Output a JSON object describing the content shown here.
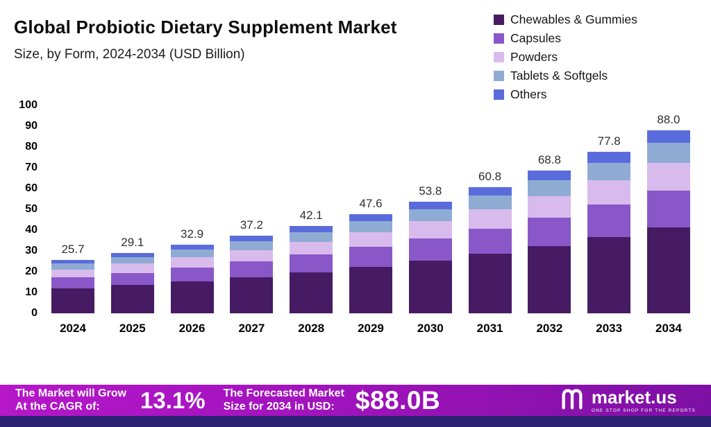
{
  "header": {
    "title": "Global Probiotic Dietary Supplement Market",
    "subtitle": "Size, by Form, 2024-2034 (USD Billion)"
  },
  "chart_data": {
    "type": "bar",
    "stacked": true,
    "title": "Global Probiotic Dietary Supplement Market",
    "subtitle": "Size, by Form, 2024-2034 (USD Billion)",
    "unit": "USD Billion",
    "grid": false,
    "legend_position": "top-right",
    "ylim": [
      0,
      100
    ],
    "yticks": [
      0,
      10,
      20,
      30,
      40,
      50,
      60,
      70,
      80,
      90,
      100
    ],
    "categories": [
      "2024",
      "2025",
      "2026",
      "2027",
      "2028",
      "2029",
      "2030",
      "2031",
      "2032",
      "2033",
      "2034"
    ],
    "series": [
      {
        "name": "Chewables & Gummies",
        "color": "#461b63",
        "values": [
          12.1,
          13.7,
          15.5,
          17.5,
          19.8,
          22.4,
          25.3,
          28.6,
          32.3,
          36.6,
          41.4
        ]
      },
      {
        "name": "Capsules",
        "color": "#8a57c8",
        "values": [
          5.1,
          5.8,
          6.6,
          7.4,
          8.4,
          9.5,
          10.8,
          12.2,
          13.8,
          15.6,
          17.6
        ]
      },
      {
        "name": "Powders",
        "color": "#d8bbec",
        "values": [
          3.9,
          4.4,
          4.9,
          5.6,
          6.3,
          7.1,
          8.1,
          9.1,
          10.3,
          11.7,
          13.2
        ]
      },
      {
        "name": "Tablets & Softgels",
        "color": "#8fabd4",
        "values": [
          2.8,
          3.2,
          3.6,
          4.1,
          4.6,
          5.2,
          5.9,
          6.7,
          7.6,
          8.6,
          9.7
        ]
      },
      {
        "name": "Others",
        "color": "#5a6cdb",
        "values": [
          1.8,
          2.0,
          2.3,
          2.6,
          3.0,
          3.4,
          3.7,
          4.2,
          4.8,
          5.3,
          6.1
        ]
      }
    ],
    "totals": [
      25.7,
      29.1,
      32.9,
      37.2,
      42.1,
      47.6,
      53.8,
      60.8,
      68.8,
      77.8,
      88.0
    ]
  },
  "banner": {
    "cagr_label_line1": "The Market will Grow",
    "cagr_label_line2": "At the CAGR of:",
    "cagr_value": "13.1%",
    "forecast_label_line1": "The Forecasted Market",
    "forecast_label_line2": "Size for 2034 in USD:",
    "forecast_value": "$88.0B",
    "brand_name": "market.us",
    "brand_tagline": "ONE STOP SHOP FOR THE REPORTS"
  }
}
